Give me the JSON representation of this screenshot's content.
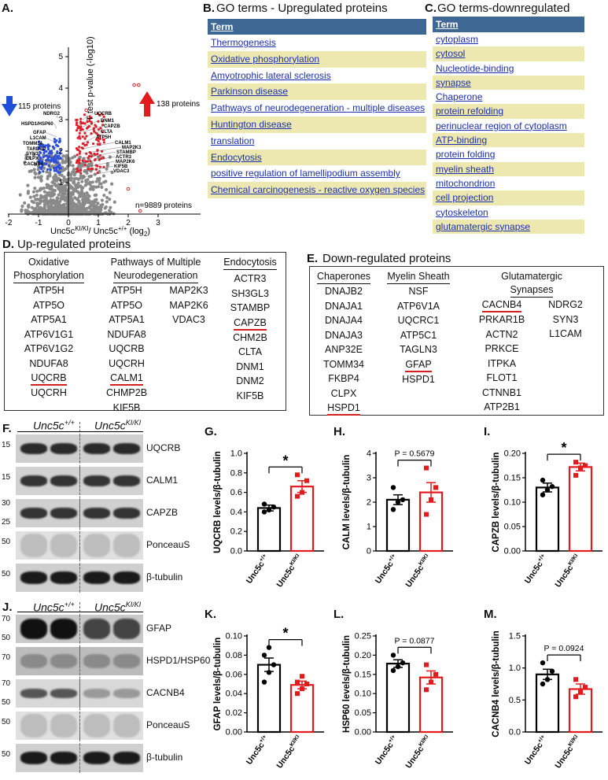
{
  "panel_letters": {
    "A": "A.",
    "B": "B.",
    "C": "C.",
    "D": "D.",
    "E": "E.",
    "F": "F.",
    "G": "G.",
    "H": "H.",
    "I": "I.",
    "J": "J.",
    "K": "K.",
    "L": "L.",
    "M": "M."
  },
  "volcano": {
    "ylabel": "T test p-value (-log10)",
    "xlabel": "Unc5c",
    "xlabel_sup1": "KI/KI",
    "xlabel_mid": "/ Unc5c",
    "xlabel_sup2": "+/+",
    "xlabel_tail": " (log",
    "xlabel_sub": "2",
    "xlabel_end": ")",
    "down_count": "115 proteins",
    "up_count": "138 proteins",
    "total": "n=9889 proteins",
    "left_labels": [
      "NDRG2",
      "HSPD1/HSP60",
      "GFAP",
      "L1CAM",
      "TOMM34",
      "TARDBP",
      "SYN3",
      "CLPX",
      "CACNB4"
    ],
    "right_labels": [
      "UQCRB",
      "DNM1",
      "CAPZB",
      "CLTA",
      "ATP5H",
      "CALM1",
      "MAP2K3",
      "STAMBP",
      "ACTR3",
      "MAP2K6",
      "KIF5B",
      "VDAC3"
    ],
    "xticks": [
      "-2",
      "-1",
      "0",
      "1",
      "2",
      "3"
    ],
    "yticks": [
      "1",
      "2",
      "3",
      "4",
      "5"
    ]
  },
  "go_up": {
    "title": "GO terms - Upregulated proteins",
    "header": "Term",
    "rows": [
      "Thermogenesis",
      "Oxidative phosphorylation",
      "Amyotrophic lateral sclerosis",
      "Parkinson disease",
      "Pathways of neurodegeneration - multiple diseases",
      "Huntington disease",
      "translation",
      "Endocytosis",
      "positive regulation of lamellipodium assembly",
      "Chemical carcinogenesis - reactive oxygen species"
    ]
  },
  "go_down": {
    "title": "GO terms-downregulated proteins",
    "header": "Term",
    "rows": [
      "cytoplasm",
      "cytosol",
      "Nucleotide-binding",
      "synapse",
      "Chaperone",
      "protein refolding",
      "perinuclear region of cytoplasm",
      "ATP-binding",
      "protein folding",
      "myelin sheath",
      "mitochondrion",
      "cell projection",
      "cytoskeleton",
      "glutamatergic synapse"
    ]
  },
  "up_proteins": {
    "title": "Up-regulated proteins",
    "col1": {
      "h1": "Oxidative",
      "h2": "Phosphorylation",
      "items": [
        "ATP5H",
        "ATP5O",
        "ATP5A1",
        "ATP6V1G1",
        "ATP6V1G2",
        "NDUFA8",
        "UQCRB",
        "UQCRH"
      ]
    },
    "col2": {
      "h1": "Pathways of Multiple",
      "h2": "Neurodegeneration",
      "items": [
        "ATP5H",
        "ATP5O",
        "ATP5A1",
        "NDUFA8",
        "UQCRB",
        "UQCRH",
        "CALM1",
        "CHMP2B",
        "KIF5B"
      ],
      "items2": [
        "MAP2K3",
        "MAP2K6",
        "VDAC3"
      ]
    },
    "col3": {
      "h1": "Endocytosis",
      "items": [
        "ACTR3",
        "SH3GL3",
        "STAMBP",
        "CAPZB",
        "CHM2B",
        "CLTA",
        "DNM1",
        "DNM2",
        "KIF5B"
      ]
    }
  },
  "down_proteins": {
    "title": "Down-regulated proteins",
    "col1": {
      "h1": "Chaperones",
      "items": [
        "DNAJB2",
        "DNAJA1",
        "DNAJA4",
        "DNAJA3",
        "ANP32E",
        "TOMM34",
        "FKBP4",
        "CLPX",
        "HSPD1"
      ]
    },
    "col2": {
      "h1": "Myelin Sheath",
      "items": [
        "NSF",
        "ATP6V1A",
        "UQCRC1",
        "ATP5C1",
        "TAGLN3",
        "GFAP",
        "HSPD1"
      ]
    },
    "col3": {
      "h1": "Glutamatergic",
      "h2": "Synapses",
      "items": [
        "CACNB4",
        "PRKAR1B",
        "ACTN2",
        "PRKCE",
        "ITPKA",
        "FLOT1",
        "CTNNB1",
        "ATP2B1"
      ],
      "items2": [
        "NDRG2",
        "SYN3",
        "L1CAM"
      ]
    }
  },
  "blots_f": {
    "hdr_wt": "Unc5c",
    "hdr_wt_sup": "+/+",
    "hdr_ki": "Unc5c",
    "hdr_ki_sup": "KI/KI",
    "lanes": [
      {
        "label": "UQCRB",
        "mw": "15"
      },
      {
        "label": "CALM1",
        "mw": "15"
      },
      {
        "label": "CAPZB",
        "mw": "30",
        "mw2": "25"
      },
      {
        "label": "PonceauS",
        "mw": "50"
      },
      {
        "label": "β-tubulin",
        "mw": "50"
      }
    ]
  },
  "blots_j": {
    "hdr_wt": "Unc5c",
    "hdr_wt_sup": "+/+",
    "hdr_ki": "Unc5c",
    "hdr_ki_sup": "KI/KI",
    "lanes": [
      {
        "label": "GFAP",
        "mw": "70",
        "mw2": "50"
      },
      {
        "label": "HSPD1/HSP60",
        "mw": "70"
      },
      {
        "label": "CACNB4",
        "mw": "70",
        "mw2": "50"
      },
      {
        "label": "PonceauS",
        "mw": "50"
      },
      {
        "label": "β-tubulin",
        "mw": "50"
      }
    ]
  },
  "chart_data": [
    {
      "id": "G",
      "type": "bar",
      "categories": [
        "Unc5c+/+",
        "Unc5cKI/KI"
      ],
      "values": [
        0.44,
        0.66
      ],
      "errors": [
        0.03,
        0.06
      ],
      "ylabel": "UQCRB levels/β-tubulin",
      "ylim": [
        0,
        1.0
      ],
      "yticks": [
        "0.0",
        "0.2",
        "0.4",
        "0.6",
        "0.8",
        "1.0"
      ],
      "annotation": "*",
      "points": [
        [
          0.4,
          0.42,
          0.45,
          0.48
        ],
        [
          0.56,
          0.6,
          0.72,
          0.78
        ]
      ]
    },
    {
      "id": "H",
      "type": "bar",
      "categories": [
        "Unc5c+/+",
        "Unc5cKI/KI"
      ],
      "values": [
        2.1,
        2.4
      ],
      "errors": [
        0.2,
        0.4
      ],
      "ylabel": "CALM levels/β-tubulin",
      "ylim": [
        0,
        4
      ],
      "yticks": [
        "0",
        "1",
        "2",
        "3",
        "4"
      ],
      "annotation": "P = 0.5679",
      "points": [
        [
          1.7,
          2.0,
          2.1,
          2.6
        ],
        [
          1.5,
          2.1,
          2.6,
          3.4
        ]
      ]
    },
    {
      "id": "I",
      "type": "bar",
      "categories": [
        "Unc5c+/+",
        "Unc5cKI/KI"
      ],
      "values": [
        0.13,
        0.172
      ],
      "errors": [
        0.009,
        0.008
      ],
      "ylabel": "CAPZB levels/β-tubulin",
      "ylim": [
        0,
        0.2
      ],
      "yticks": [
        "0.00",
        "0.05",
        "0.10",
        "0.15",
        "0.20"
      ],
      "annotation": "*",
      "points": [
        [
          0.115,
          0.125,
          0.132,
          0.145
        ],
        [
          0.155,
          0.17,
          0.175,
          0.182
        ]
      ]
    },
    {
      "id": "K",
      "type": "bar",
      "categories": [
        "Unc5c+/+",
        "Unc5cKI/KI"
      ],
      "values": [
        0.07,
        0.049
      ],
      "errors": [
        0.007,
        0.004
      ],
      "ylabel": "GFAP levels/β-tubulin",
      "ylim": [
        0,
        0.1
      ],
      "yticks": [
        "0.00",
        "0.02",
        "0.04",
        "0.06",
        "0.08",
        "0.10"
      ],
      "annotation": "*",
      "points": [
        [
          0.052,
          0.062,
          0.07,
          0.08,
          0.088
        ],
        [
          0.04,
          0.045,
          0.05,
          0.052,
          0.058
        ]
      ]
    },
    {
      "id": "L",
      "type": "bar",
      "categories": [
        "Unc5c+/+",
        "Unc5cKI/KI"
      ],
      "values": [
        0.178,
        0.142
      ],
      "errors": [
        0.01,
        0.017
      ],
      "ylabel": "HSP60 levels/β-tubulin",
      "ylim": [
        0,
        0.25
      ],
      "yticks": [
        "0.00",
        "0.05",
        "0.10",
        "0.15",
        "0.20",
        "0.25"
      ],
      "annotation": "P = 0.0877",
      "points": [
        [
          0.16,
          0.17,
          0.18,
          0.2
        ],
        [
          0.11,
          0.13,
          0.15,
          0.175
        ]
      ]
    },
    {
      "id": "M",
      "type": "bar",
      "categories": [
        "Unc5c+/+",
        "Unc5cKI/KI"
      ],
      "values": [
        0.9,
        0.67
      ],
      "errors": [
        0.08,
        0.08
      ],
      "ylabel": "CACNB4 levels/β-tubulin",
      "ylim": [
        0,
        1.5
      ],
      "yticks": [
        "0.0",
        "0.5",
        "1.0",
        "1.5"
      ],
      "annotation": "P = 0.0924",
      "points": [
        [
          0.75,
          0.82,
          0.95,
          1.08
        ],
        [
          0.55,
          0.62,
          0.7,
          0.82
        ]
      ]
    }
  ],
  "bar_xlabels": {
    "base": "Unc5c",
    "sup_wt": "+/+",
    "sup_ki": "KI/KI"
  },
  "colors": {
    "wt": "#000000",
    "ki": "#e41a1c",
    "go_header": "#3e6893",
    "go_band": "#ece8b0",
    "link": "#1b2fb0",
    "up_arrow": "#e41a1c",
    "down_arrow": "#1f4fd8"
  }
}
